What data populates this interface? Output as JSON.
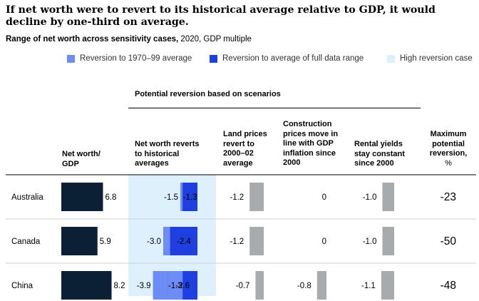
{
  "title": "If net worth were to revert to its historical average relative to GDP, it would decline by one-third on average.",
  "subtitle_bold": "Range of net worth across sensitivity cases,",
  "subtitle_rest": " 2020, GDP multiple",
  "legend": [
    {
      "label": "Reversion to 1970–99 average",
      "color": "#6e8cf5"
    },
    {
      "label": "Reversion to average of full data range",
      "color": "#1f3fe0"
    },
    {
      "label": "High reversion case",
      "color": "#ddf0fb"
    }
  ],
  "colors": {
    "navy": "#0b1f35",
    "grey": "#a8abad",
    "light_blue": "#ddf0fb",
    "mid_blue": "#6e8cf5",
    "dark_blue": "#1f3fe0"
  },
  "group_header": "Potential reversion based on scenarios",
  "columns": {
    "net_worth": [
      "Net worth/",
      "GDP"
    ],
    "reverts": [
      "Net worth reverts",
      "to historical",
      "averages"
    ],
    "land": [
      "Land prices",
      "revert to",
      "2000–02",
      "average"
    ],
    "construction": [
      "Construction",
      "prices move in",
      "line with GDP",
      "inflation since",
      "2000"
    ],
    "rental": [
      "Rental yields",
      "stay constant",
      "since 2000"
    ],
    "maximum": [
      "Maximum",
      "potential",
      "reversion,",
      "%"
    ]
  },
  "chart_data": {
    "type": "table",
    "title": "If net worth were to revert to its historical average relative to GDP, it would decline by one-third on average.",
    "subtitle": "Range of net worth across sensitivity cases, 2020, GDP multiple",
    "rows": [
      {
        "country": "Australia",
        "net_worth_gdp": 6.8,
        "revert_1970_99": -1.5,
        "revert_full": -1.3,
        "land_prices": -1.2,
        "construction": 0,
        "rental_yields": -1.0,
        "max_reversion_pct": -23
      },
      {
        "country": "Canada",
        "net_worth_gdp": 5.9,
        "revert_1970_99": -3.0,
        "revert_full": -2.4,
        "land_prices": -1.2,
        "construction": 0,
        "rental_yields": -1.0,
        "max_reversion_pct": -50
      },
      {
        "country": "China",
        "net_worth_gdp": 8.2,
        "revert_1970_99": -3.9,
        "revert_full": -1.3,
        "revert_full_b": -2.6,
        "land_prices": -0.7,
        "construction": -0.8,
        "rental_yields": -1.1,
        "max_reversion_pct": -48
      }
    ],
    "labels": {
      "net_worth": [
        "6.8",
        "5.9",
        "8.2"
      ],
      "revert_a": [
        "-1.5",
        "-3.0",
        "-3.9"
      ],
      "revert_b": [
        "-1.3",
        "-2.4",
        "-1.3"
      ],
      "revert_c": [
        "",
        "",
        "-2.6"
      ],
      "land": [
        "-1.2",
        "-1.2",
        "-0.7"
      ],
      "construction": [
        "0",
        "0",
        "-0.8"
      ],
      "rental": [
        "-1.0",
        "-1.0",
        "-1.1"
      ],
      "maximum": [
        "-23",
        "-50",
        "-48"
      ]
    }
  }
}
